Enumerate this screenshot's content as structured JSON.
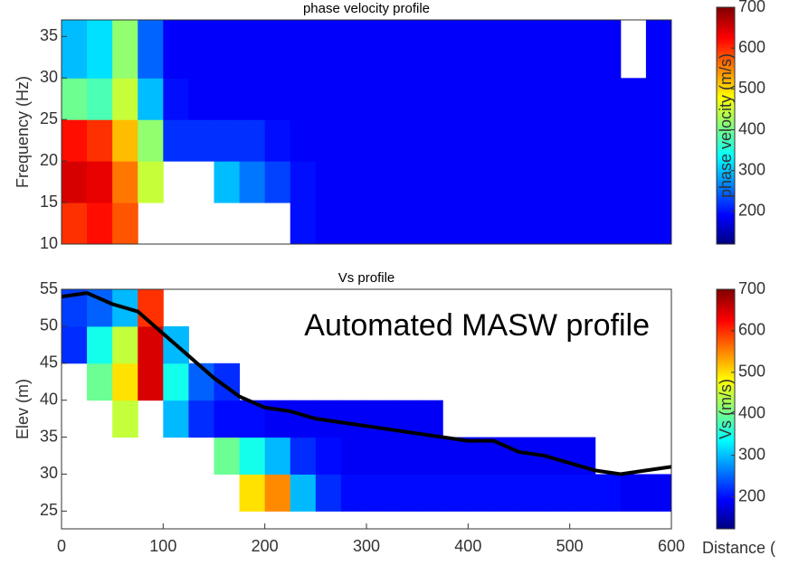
{
  "chart_data": [
    {
      "type": "heatmap",
      "title": "phase velocity profile",
      "ylabel": "Frequency (Hz)",
      "xlim": [
        0,
        600
      ],
      "ylim": [
        10,
        37
      ],
      "yticks": [
        10,
        15,
        20,
        25,
        30,
        35
      ],
      "xbins": [
        0,
        25,
        50,
        75,
        100,
        125,
        150,
        175,
        200,
        225,
        250,
        275,
        300,
        325,
        350,
        375,
        400,
        425,
        450,
        475,
        500,
        525,
        550,
        575,
        600
      ],
      "ybins": [
        10,
        15,
        20,
        25,
        30,
        37
      ],
      "values": [
        [
          600,
          620,
          580,
          null,
          null,
          null,
          null,
          null,
          null,
          200,
          190,
          190,
          190,
          190,
          190,
          190,
          190,
          190,
          190,
          190,
          190,
          190,
          190,
          190
        ],
        [
          650,
          640,
          560,
          450,
          null,
          null,
          300,
          260,
          230,
          200,
          190,
          190,
          190,
          190,
          190,
          190,
          190,
          190,
          190,
          190,
          190,
          190,
          190,
          190
        ],
        [
          620,
          600,
          520,
          420,
          220,
          220,
          220,
          220,
          200,
          190,
          190,
          190,
          190,
          190,
          190,
          190,
          190,
          190,
          190,
          190,
          190,
          190,
          190,
          190
        ],
        [
          400,
          380,
          450,
          300,
          200,
          190,
          190,
          190,
          190,
          190,
          190,
          190,
          190,
          190,
          190,
          190,
          190,
          190,
          190,
          190,
          190,
          190,
          190,
          190
        ],
        [
          300,
          320,
          420,
          250,
          190,
          190,
          190,
          190,
          190,
          190,
          190,
          190,
          190,
          190,
          190,
          190,
          190,
          190,
          190,
          190,
          190,
          190,
          null,
          190
        ]
      ],
      "colorbar_label": "phase velocity (m/s)",
      "clim": [
        120,
        700
      ],
      "cticks": [
        200,
        300,
        400,
        500,
        600,
        700
      ]
    },
    {
      "type": "heatmap",
      "title": "Vs profile",
      "ylabel": "Elev (m)",
      "xlabel": "Distance (",
      "annotation": "Automated MASW profile",
      "xlim": [
        0,
        600
      ],
      "xticks": [
        0,
        100,
        200,
        300,
        400,
        500,
        600
      ],
      "ylim": [
        22.6,
        55
      ],
      "yticks": [
        25,
        30,
        35,
        40,
        45,
        50,
        55
      ],
      "xbins": [
        0,
        25,
        50,
        75,
        100,
        125,
        150,
        175,
        200,
        225,
        250,
        275,
        300,
        325,
        350,
        375,
        400,
        425,
        450,
        475,
        500,
        525,
        550,
        575,
        600
      ],
      "ybins": [
        25,
        30,
        35,
        40,
        45,
        50,
        55
      ],
      "values": [
        [
          null,
          null,
          null,
          null,
          null,
          null,
          null,
          500,
          550,
          300,
          220,
          200,
          200,
          200,
          200,
          200,
          200,
          200,
          200,
          200,
          200,
          200,
          190,
          190
        ],
        [
          null,
          null,
          null,
          null,
          null,
          null,
          400,
          350,
          300,
          220,
          200,
          190,
          190,
          190,
          190,
          190,
          190,
          190,
          190,
          190,
          190,
          null,
          null,
          null
        ],
        [
          null,
          null,
          450,
          null,
          300,
          220,
          200,
          200,
          190,
          190,
          190,
          190,
          190,
          190,
          190,
          null,
          null,
          null,
          null,
          null,
          null,
          null,
          null,
          null
        ],
        [
          null,
          400,
          500,
          650,
          350,
          250,
          220,
          null,
          null,
          null,
          null,
          null,
          null,
          null,
          null,
          null,
          null,
          null,
          null,
          null,
          null,
          null,
          null,
          null
        ],
        [
          220,
          350,
          450,
          650,
          300,
          null,
          null,
          null,
          null,
          null,
          null,
          null,
          null,
          null,
          null,
          null,
          null,
          null,
          null,
          null,
          null,
          null,
          null,
          null
        ],
        [
          230,
          250,
          300,
          600,
          null,
          null,
          null,
          null,
          null,
          null,
          null,
          null,
          null,
          null,
          null,
          null,
          null,
          null,
          null,
          null,
          null,
          null,
          null,
          null
        ]
      ],
      "surface": {
        "color": "#000000",
        "x": [
          0,
          25,
          50,
          75,
          100,
          125,
          150,
          175,
          200,
          225,
          250,
          275,
          300,
          325,
          350,
          375,
          400,
          425,
          450,
          475,
          500,
          525,
          550,
          575,
          600
        ],
        "y": [
          54,
          54.5,
          53,
          52,
          49,
          46,
          43,
          40.5,
          39,
          38.5,
          37.5,
          37,
          36.5,
          36,
          35.5,
          35,
          34.5,
          34.5,
          33,
          32.5,
          31.5,
          30.5,
          30,
          30.5,
          31
        ]
      },
      "colorbar_label": "Vs (m/s)",
      "clim": [
        123,
        700
      ],
      "cticks": [
        200,
        300,
        400,
        500,
        600,
        700
      ]
    }
  ]
}
